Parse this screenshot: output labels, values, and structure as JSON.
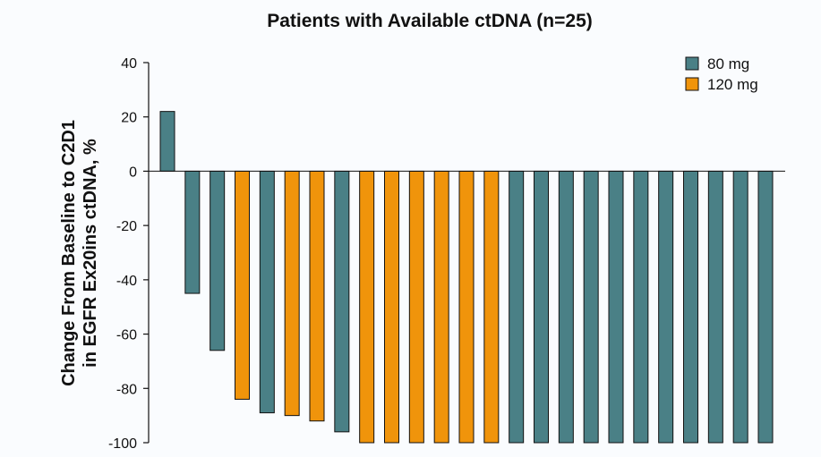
{
  "chart_data": {
    "type": "bar",
    "title": "Patients with Available ctDNA (n=25)",
    "ylabel_lines": [
      "Change From Baseline to C2D1",
      "in EGFR Ex20ins ctDNA, %"
    ],
    "xlabel": "",
    "ylim": [
      -100,
      40
    ],
    "yticks": [
      40,
      20,
      0,
      -20,
      -40,
      -60,
      -80,
      -100
    ],
    "legend": {
      "position": "top-right",
      "entries": [
        {
          "name": "80 mg",
          "color": "#4a8086"
        },
        {
          "name": "120 mg",
          "color": "#f0940b"
        }
      ]
    },
    "series": [
      {
        "name": "80 mg",
        "color": "#4a8086"
      },
      {
        "name": "120 mg",
        "color": "#f0940b"
      }
    ],
    "bars": [
      {
        "value": 22,
        "series": "80 mg"
      },
      {
        "value": -45,
        "series": "80 mg"
      },
      {
        "value": -66,
        "series": "80 mg"
      },
      {
        "value": -84,
        "series": "120 mg"
      },
      {
        "value": -89,
        "series": "80 mg"
      },
      {
        "value": -90,
        "series": "120 mg"
      },
      {
        "value": -92,
        "series": "120 mg"
      },
      {
        "value": -96,
        "series": "80 mg"
      },
      {
        "value": -100,
        "series": "120 mg"
      },
      {
        "value": -100,
        "series": "120 mg"
      },
      {
        "value": -100,
        "series": "120 mg"
      },
      {
        "value": -100,
        "series": "120 mg"
      },
      {
        "value": -100,
        "series": "120 mg"
      },
      {
        "value": -100,
        "series": "120 mg"
      },
      {
        "value": -100,
        "series": "80 mg"
      },
      {
        "value": -100,
        "series": "80 mg"
      },
      {
        "value": -100,
        "series": "80 mg"
      },
      {
        "value": -100,
        "series": "80 mg"
      },
      {
        "value": -100,
        "series": "80 mg"
      },
      {
        "value": -100,
        "series": "80 mg"
      },
      {
        "value": -100,
        "series": "80 mg"
      },
      {
        "value": -100,
        "series": "80 mg"
      },
      {
        "value": -100,
        "series": "80 mg"
      },
      {
        "value": -100,
        "series": "80 mg"
      },
      {
        "value": -100,
        "series": "80 mg"
      }
    ]
  }
}
